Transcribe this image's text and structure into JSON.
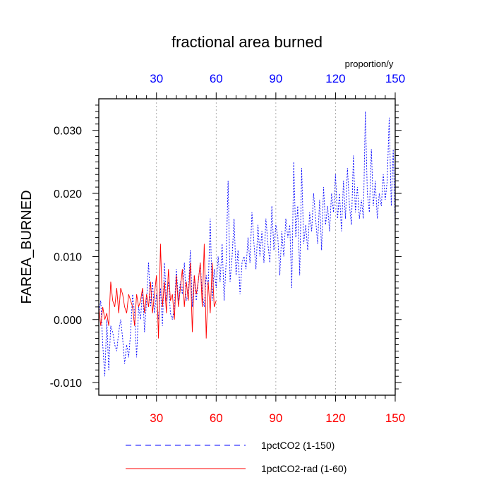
{
  "chart_data": {
    "type": "line",
    "title": "fractional area burned",
    "ylabel": "FAREA_BURNED",
    "units": "proportion/y",
    "xlim": [
      1,
      150
    ],
    "ylim": [
      -0.012,
      0.035
    ],
    "xticks": [
      30,
      60,
      90,
      120,
      150
    ],
    "xtick_labels_bottom": [
      "30",
      "60",
      "90",
      "120",
      "150"
    ],
    "xtick_labels_top": [
      "30",
      "60",
      "90",
      "120",
      "150"
    ],
    "yticks": [
      -0.01,
      0.0,
      0.01,
      0.02,
      0.03
    ],
    "ytick_labels": [
      "-0.010",
      "0.000",
      "0.010",
      "0.020",
      "0.030"
    ],
    "grid": "vertical dotted at x ticks",
    "colors": {
      "bottom_axis": "#ff0000",
      "top_axis": "#0000ff",
      "series_blue": "#0000ff",
      "series_red": "#ff0000"
    },
    "series": [
      {
        "name": "1pctCO2 (1-150)",
        "color": "#0000ff",
        "style": "dashed",
        "x_start": 1,
        "values": [
          0.001,
          0.003,
          -0.004,
          -0.009,
          0.0,
          -0.008,
          -0.001,
          -0.002,
          -0.004,
          -0.005,
          -0.002,
          0.0,
          -0.003,
          -0.007,
          -0.004,
          -0.006,
          -0.002,
          0.004,
          0.001,
          -0.006,
          0.002,
          0.0,
          0.005,
          -0.002,
          0.003,
          0.009,
          0.002,
          0.006,
          0.001,
          0.004,
          0.0,
          0.005,
          -0.001,
          0.009,
          0.003,
          0.006,
          0.001,
          0.0,
          0.002,
          0.008,
          0.003,
          0.006,
          0.004,
          0.009,
          0.003,
          0.004,
          0.011,
          0.002,
          0.007,
          0.003,
          0.006,
          0.009,
          0.004,
          0.002,
          0.007,
          0.005,
          0.016,
          0.003,
          0.008,
          0.005,
          0.01,
          0.006,
          0.012,
          0.003,
          0.009,
          0.022,
          0.006,
          0.01,
          0.016,
          0.007,
          0.011,
          0.004,
          0.009,
          0.01,
          0.008,
          0.013,
          0.009,
          0.017,
          0.012,
          0.008,
          0.015,
          0.01,
          0.014,
          0.009,
          0.016,
          0.012,
          0.009,
          0.018,
          0.011,
          0.015,
          0.013,
          0.007,
          0.014,
          0.01,
          0.016,
          0.013,
          0.015,
          0.005,
          0.025,
          0.013,
          0.018,
          0.007,
          0.024,
          0.012,
          0.015,
          0.011,
          0.017,
          0.014,
          0.02,
          0.016,
          0.012,
          0.019,
          0.011,
          0.021,
          0.015,
          0.018,
          0.014,
          0.02,
          0.017,
          0.023,
          0.016,
          0.02,
          0.014,
          0.022,
          0.016,
          0.024,
          0.018,
          0.015,
          0.026,
          0.017,
          0.021,
          0.016,
          0.019,
          0.016,
          0.033,
          0.02,
          0.017,
          0.027,
          0.018,
          0.022,
          0.016,
          0.02,
          0.018,
          0.023,
          0.019,
          0.022,
          0.032,
          0.018,
          0.027,
          0.015
        ]
      },
      {
        "name": "1pctCO2-rad (1-60)",
        "color": "#ff0000",
        "style": "solid",
        "x_start": 1,
        "values": [
          0.002,
          -0.001,
          0.002,
          0.0,
          0.001,
          -0.001,
          0.006,
          0.003,
          0.002,
          0.005,
          0.001,
          0.005,
          0.004,
          0.002,
          0.001,
          0.004,
          0.003,
          0.002,
          -0.001,
          0.004,
          0.002,
          0.003,
          0.005,
          0.001,
          0.004,
          0.002,
          0.006,
          0.001,
          0.004,
          0.007,
          -0.003,
          0.012,
          0.002,
          0.006,
          0.001,
          0.008,
          0.003,
          0.004,
          0.0,
          0.007,
          0.002,
          0.005,
          0.008,
          0.002,
          0.006,
          0.003,
          0.009,
          -0.002,
          0.007,
          0.004,
          0.006,
          0.009,
          0.002,
          0.012,
          -0.003,
          0.006,
          0.001,
          0.009,
          0.002,
          0.003
        ]
      }
    ]
  }
}
